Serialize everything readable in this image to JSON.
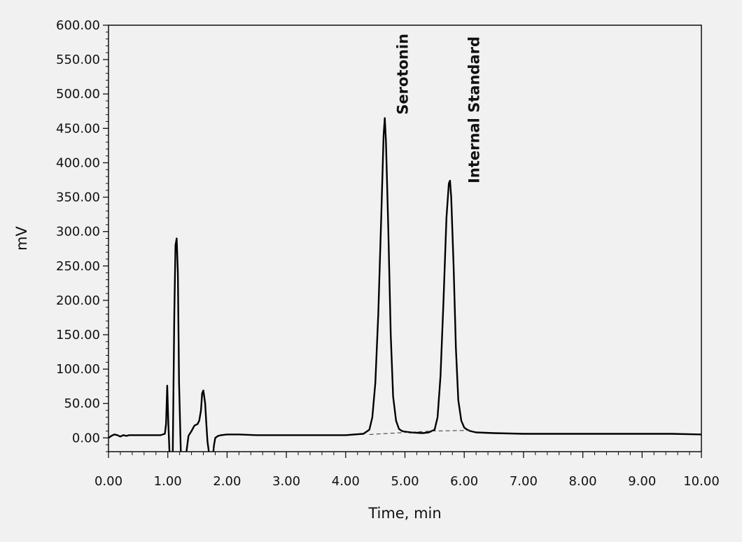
{
  "colors": {
    "background": "#f1f1f1",
    "trace": "#000000"
  },
  "chart_data": {
    "type": "line",
    "xlabel": "Time, min",
    "ylabel": "mV",
    "xlim": [
      0,
      10
    ],
    "ylim": [
      -20,
      600
    ],
    "x_ticks": [
      "0.00",
      "1.00",
      "2.00",
      "3.00",
      "4.00",
      "5.00",
      "6.00",
      "7.00",
      "8.00",
      "9.00",
      "10.00"
    ],
    "y_ticks": [
      "0.00",
      "50.00",
      "100.00",
      "150.00",
      "200.00",
      "250.00",
      "300.00",
      "350.00",
      "400.00",
      "450.00",
      "500.00",
      "550.00",
      "600.00"
    ],
    "grid": false,
    "legend": "none",
    "series": [
      {
        "x": [
          0.0,
          0.05,
          0.1,
          0.15,
          0.2,
          0.25,
          0.3,
          0.35,
          0.5,
          0.7,
          0.88,
          0.95,
          0.97,
          0.99,
          1.01,
          1.04,
          1.08,
          1.11,
          1.13,
          1.15,
          1.17,
          1.19,
          1.22,
          1.25,
          1.3,
          1.35,
          1.4,
          1.45,
          1.5,
          1.53,
          1.56,
          1.58,
          1.6,
          1.63,
          1.65,
          1.67,
          1.7,
          1.72,
          1.75,
          1.78,
          1.8,
          1.85,
          1.9,
          2.0,
          2.2,
          2.5,
          3.0,
          3.5,
          4.0,
          4.3,
          4.4,
          4.45,
          4.5,
          4.55,
          4.6,
          4.64,
          4.66,
          4.68,
          4.72,
          4.76,
          4.8,
          4.85,
          4.9,
          4.95,
          5.0,
          5.1,
          5.3,
          5.4,
          5.5,
          5.55,
          5.6,
          5.65,
          5.7,
          5.74,
          5.76,
          5.78,
          5.82,
          5.86,
          5.9,
          5.95,
          6.0,
          6.05,
          6.1,
          6.2,
          6.5,
          7.0,
          7.5,
          8.0,
          8.5,
          9.0,
          9.5,
          10.0
        ],
        "y": [
          0,
          3,
          5,
          4,
          2,
          4,
          3,
          4,
          4,
          4,
          4,
          6,
          20,
          76,
          20,
          -45,
          -50,
          180,
          280,
          290,
          240,
          80,
          -20,
          -40,
          -30,
          3,
          10,
          18,
          20,
          25,
          40,
          65,
          69,
          50,
          20,
          -5,
          -25,
          -38,
          -35,
          -10,
          0,
          3,
          4,
          5,
          5,
          4,
          4,
          4,
          4,
          6,
          12,
          30,
          80,
          180,
          320,
          440,
          465,
          430,
          300,
          150,
          60,
          25,
          13,
          10,
          9,
          8,
          7,
          8,
          12,
          30,
          90,
          200,
          320,
          370,
          374,
          350,
          250,
          130,
          55,
          25,
          15,
          12,
          10,
          8,
          7,
          6,
          6,
          6,
          6,
          6,
          6,
          5
        ]
      }
    ],
    "baselines": [
      {
        "x": [
          4.4,
          5.45
        ],
        "y": [
          5,
          10
        ]
      },
      {
        "x": [
          5.45,
          6.1
        ],
        "y": [
          10,
          11
        ]
      }
    ],
    "annotations": [
      {
        "text": "Serotonin",
        "x": 5.05,
        "y": 470
      },
      {
        "text": "Internal Standard",
        "x": 6.25,
        "y": 370
      }
    ]
  }
}
